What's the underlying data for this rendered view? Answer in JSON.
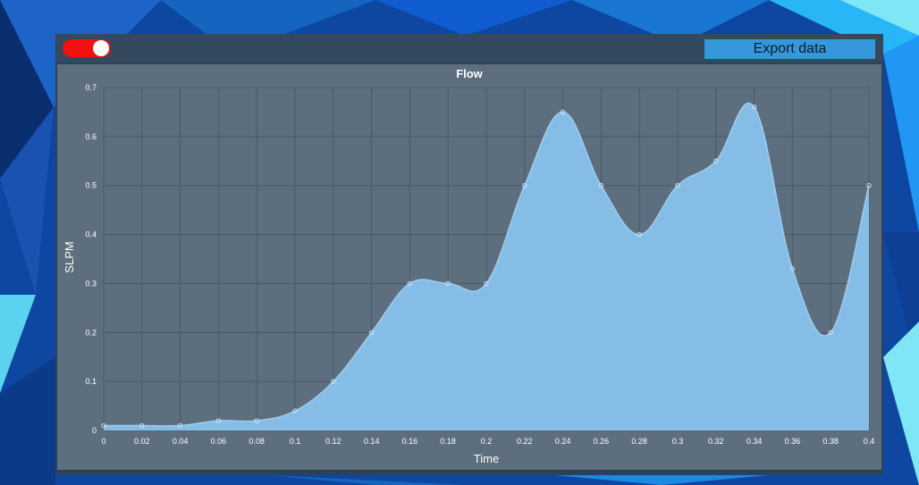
{
  "toolbar": {
    "export_label": "Export data",
    "toggle_on": true,
    "toggle_color": "#f21010",
    "export_color": "#3498db"
  },
  "chart_data": {
    "type": "area",
    "title": "Flow",
    "xlabel": "Time",
    "ylabel": "SLPM",
    "x": [
      0,
      0.02,
      0.04,
      0.06,
      0.08,
      0.1,
      0.12,
      0.14,
      0.16,
      0.18,
      0.2,
      0.22,
      0.24,
      0.26,
      0.28,
      0.3,
      0.32,
      0.34,
      0.36,
      0.38,
      0.4
    ],
    "y": [
      0.01,
      0.01,
      0.01,
      0.02,
      0.02,
      0.04,
      0.1,
      0.2,
      0.3,
      0.3,
      0.3,
      0.5,
      0.65,
      0.5,
      0.4,
      0.5,
      0.55,
      0.66,
      0.33,
      0.2,
      0.5
    ],
    "xticks": [
      "0",
      "0.02",
      "0.04",
      "0.06",
      "0.08",
      "0.1",
      "0.12",
      "0.14",
      "0.16",
      "0.18",
      "0.2",
      "0.22",
      "0.24",
      "0.26",
      "0.28",
      "0.3",
      "0.32",
      "0.34",
      "0.36",
      "0.38",
      "0.4"
    ],
    "yticks": [
      "0",
      "0.1",
      "0.2",
      "0.3",
      "0.4",
      "0.5",
      "0.6",
      "0.7"
    ],
    "xlim": [
      0,
      0.4
    ],
    "ylim": [
      0,
      0.7
    ],
    "grid": true,
    "fill_color": "#85bde6"
  }
}
